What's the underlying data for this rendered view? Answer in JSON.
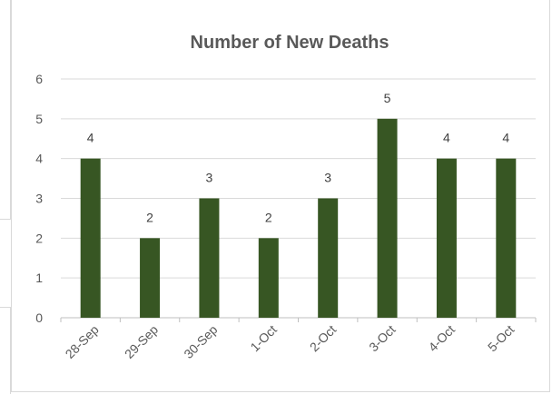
{
  "chart_data": {
    "type": "bar",
    "title": "Number of New Deaths",
    "xlabel": "",
    "ylabel": "",
    "categories": [
      "28-Sep",
      "29-Sep",
      "30-Sep",
      "1-Oct",
      "2-Oct",
      "3-Oct",
      "4-Oct",
      "5-Oct"
    ],
    "values": [
      4,
      2,
      3,
      2,
      3,
      5,
      4,
      4
    ],
    "ylim": [
      0,
      6
    ],
    "yticks": [
      "0",
      "1",
      "2",
      "3",
      "4",
      "5",
      "6"
    ],
    "grid": true,
    "legend": "none",
    "bar_color": "#375623",
    "grid_color": "#d9d9d9",
    "data_labels": true
  }
}
